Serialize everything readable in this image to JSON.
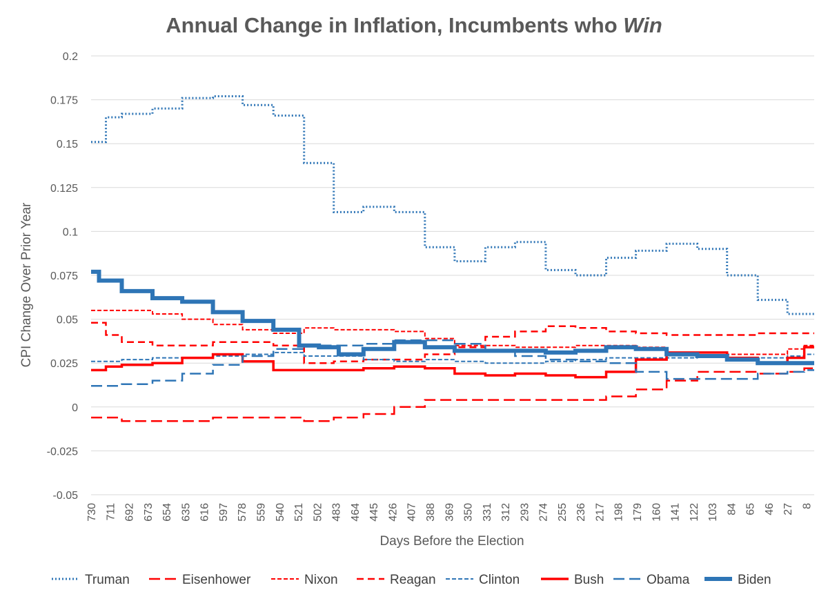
{
  "chart_data": {
    "type": "line",
    "title": "Annual Change in Inflation, Incumbents who ",
    "title_emphasis": "Win",
    "xlabel": "Days Before the Election",
    "ylabel": "CPI Change Over Prior Year",
    "xlim": [
      730,
      0
    ],
    "ylim": [
      -0.05,
      0.2
    ],
    "yticks": [
      "-0.05",
      "-0.025",
      "0",
      "0.025",
      "0.05",
      "0.075",
      "0.1",
      "0.125",
      "0.15",
      "0.175",
      "0.2"
    ],
    "xticks": [
      "730",
      "711",
      "692",
      "673",
      "654",
      "635",
      "616",
      "597",
      "578",
      "559",
      "540",
      "521",
      "502",
      "483",
      "464",
      "445",
      "426",
      "407",
      "388",
      "369",
      "350",
      "331",
      "312",
      "293",
      "274",
      "255",
      "236",
      "217",
      "198",
      "179",
      "160",
      "141",
      "122",
      "103",
      "84",
      "65",
      "46",
      "27",
      "8"
    ],
    "grid": true,
    "legend_position": "bottom",
    "series": [
      {
        "name": "Truman",
        "color": "#2E75B6",
        "style": "dotted",
        "steps": [
          [
            730,
            0.151
          ],
          [
            715,
            0.165
          ],
          [
            699,
            0.167
          ],
          [
            668,
            0.17
          ],
          [
            638,
            0.176
          ],
          [
            607,
            0.177
          ],
          [
            577,
            0.172
          ],
          [
            546,
            0.166
          ],
          [
            515,
            0.139
          ],
          [
            485,
            0.111
          ],
          [
            455,
            0.114
          ],
          [
            424,
            0.111
          ],
          [
            393,
            0.091
          ],
          [
            363,
            0.083
          ],
          [
            332,
            0.091
          ],
          [
            302,
            0.094
          ],
          [
            271,
            0.078
          ],
          [
            241,
            0.075
          ],
          [
            210,
            0.085
          ],
          [
            180,
            0.089
          ],
          [
            149,
            0.093
          ],
          [
            118,
            0.09
          ],
          [
            88,
            0.075
          ],
          [
            57,
            0.061
          ],
          [
            27,
            0.053
          ],
          [
            0,
            0.053
          ]
        ]
      },
      {
        "name": "Eisenhower",
        "color": "#FF0000",
        "style": "longdash",
        "steps": [
          [
            730,
            -0.006
          ],
          [
            699,
            -0.008
          ],
          [
            607,
            -0.006
          ],
          [
            515,
            -0.008
          ],
          [
            485,
            -0.006
          ],
          [
            455,
            -0.004
          ],
          [
            424,
            0.0
          ],
          [
            393,
            0.004
          ],
          [
            241,
            0.004
          ],
          [
            210,
            0.006
          ],
          [
            180,
            0.01
          ],
          [
            149,
            0.015
          ],
          [
            118,
            0.02
          ],
          [
            88,
            0.02
          ],
          [
            57,
            0.019
          ],
          [
            27,
            0.02
          ],
          [
            10,
            0.022
          ],
          [
            0,
            0.022
          ]
        ]
      },
      {
        "name": "Nixon",
        "color": "#FF0000",
        "style": "shortdash",
        "steps": [
          [
            730,
            0.055
          ],
          [
            668,
            0.053
          ],
          [
            638,
            0.05
          ],
          [
            607,
            0.047
          ],
          [
            577,
            0.044
          ],
          [
            546,
            0.042
          ],
          [
            515,
            0.045
          ],
          [
            485,
            0.044
          ],
          [
            424,
            0.043
          ],
          [
            393,
            0.039
          ],
          [
            363,
            0.035
          ],
          [
            302,
            0.034
          ],
          [
            241,
            0.035
          ],
          [
            180,
            0.034
          ],
          [
            149,
            0.03
          ],
          [
            118,
            0.029
          ],
          [
            88,
            0.03
          ],
          [
            57,
            0.03
          ],
          [
            27,
            0.033
          ],
          [
            10,
            0.035
          ],
          [
            0,
            0.035
          ]
        ]
      },
      {
        "name": "Reagan",
        "color": "#FF0000",
        "style": "dash",
        "steps": [
          [
            730,
            0.048
          ],
          [
            715,
            0.041
          ],
          [
            699,
            0.037
          ],
          [
            668,
            0.035
          ],
          [
            607,
            0.037
          ],
          [
            546,
            0.035
          ],
          [
            515,
            0.025
          ],
          [
            485,
            0.026
          ],
          [
            455,
            0.027
          ],
          [
            393,
            0.03
          ],
          [
            363,
            0.034
          ],
          [
            332,
            0.04
          ],
          [
            302,
            0.043
          ],
          [
            271,
            0.046
          ],
          [
            241,
            0.045
          ],
          [
            210,
            0.043
          ],
          [
            180,
            0.042
          ],
          [
            149,
            0.041
          ],
          [
            57,
            0.042
          ],
          [
            27,
            0.042
          ],
          [
            0,
            0.042
          ]
        ]
      },
      {
        "name": "Clinton",
        "color": "#2E75B6",
        "style": "shortdash",
        "steps": [
          [
            730,
            0.026
          ],
          [
            699,
            0.027
          ],
          [
            668,
            0.028
          ],
          [
            607,
            0.029
          ],
          [
            577,
            0.03
          ],
          [
            546,
            0.031
          ],
          [
            515,
            0.029
          ],
          [
            485,
            0.029
          ],
          [
            455,
            0.027
          ],
          [
            424,
            0.026
          ],
          [
            393,
            0.027
          ],
          [
            363,
            0.026
          ],
          [
            332,
            0.025
          ],
          [
            302,
            0.025
          ],
          [
            271,
            0.026
          ],
          [
            241,
            0.027
          ],
          [
            210,
            0.028
          ],
          [
            180,
            0.028
          ],
          [
            149,
            0.028
          ],
          [
            118,
            0.029
          ],
          [
            88,
            0.028
          ],
          [
            57,
            0.028
          ],
          [
            27,
            0.029
          ],
          [
            10,
            0.03
          ],
          [
            0,
            0.03
          ]
        ]
      },
      {
        "name": "Bush",
        "color": "#FF0000",
        "style": "solid",
        "steps": [
          [
            730,
            0.021
          ],
          [
            715,
            0.023
          ],
          [
            699,
            0.024
          ],
          [
            668,
            0.025
          ],
          [
            638,
            0.028
          ],
          [
            607,
            0.03
          ],
          [
            577,
            0.026
          ],
          [
            546,
            0.021
          ],
          [
            515,
            0.021
          ],
          [
            485,
            0.021
          ],
          [
            455,
            0.022
          ],
          [
            424,
            0.023
          ],
          [
            393,
            0.022
          ],
          [
            363,
            0.019
          ],
          [
            332,
            0.018
          ],
          [
            302,
            0.019
          ],
          [
            271,
            0.018
          ],
          [
            241,
            0.017
          ],
          [
            210,
            0.02
          ],
          [
            180,
            0.027
          ],
          [
            149,
            0.031
          ],
          [
            118,
            0.031
          ],
          [
            88,
            0.028
          ],
          [
            57,
            0.025
          ],
          [
            27,
            0.028
          ],
          [
            10,
            0.034
          ],
          [
            0,
            0.034
          ]
        ]
      },
      {
        "name": "Obama",
        "color": "#2E75B6",
        "style": "longdash",
        "steps": [
          [
            730,
            0.012
          ],
          [
            699,
            0.013
          ],
          [
            668,
            0.015
          ],
          [
            638,
            0.019
          ],
          [
            607,
            0.024
          ],
          [
            577,
            0.029
          ],
          [
            546,
            0.033
          ],
          [
            515,
            0.035
          ],
          [
            485,
            0.035
          ],
          [
            455,
            0.036
          ],
          [
            424,
            0.038
          ],
          [
            393,
            0.038
          ],
          [
            363,
            0.036
          ],
          [
            332,
            0.032
          ],
          [
            302,
            0.029
          ],
          [
            271,
            0.027
          ],
          [
            241,
            0.026
          ],
          [
            210,
            0.025
          ],
          [
            180,
            0.02
          ],
          [
            149,
            0.016
          ],
          [
            118,
            0.016
          ],
          [
            88,
            0.016
          ],
          [
            57,
            0.019
          ],
          [
            27,
            0.02
          ],
          [
            10,
            0.021
          ],
          [
            0,
            0.021
          ]
        ]
      },
      {
        "name": "Biden",
        "color": "#2E75B6",
        "style": "thick",
        "steps": [
          [
            730,
            0.077
          ],
          [
            722,
            0.072
          ],
          [
            699,
            0.066
          ],
          [
            668,
            0.062
          ],
          [
            638,
            0.06
          ],
          [
            607,
            0.054
          ],
          [
            577,
            0.049
          ],
          [
            546,
            0.044
          ],
          [
            520,
            0.035
          ],
          [
            500,
            0.034
          ],
          [
            480,
            0.03
          ],
          [
            455,
            0.033
          ],
          [
            424,
            0.037
          ],
          [
            393,
            0.034
          ],
          [
            363,
            0.032
          ],
          [
            332,
            0.032
          ],
          [
            302,
            0.032
          ],
          [
            271,
            0.031
          ],
          [
            241,
            0.032
          ],
          [
            210,
            0.034
          ],
          [
            180,
            0.033
          ],
          [
            149,
            0.03
          ],
          [
            118,
            0.029
          ],
          [
            88,
            0.027
          ],
          [
            57,
            0.025
          ],
          [
            27,
            0.025
          ],
          [
            10,
            0.025
          ],
          [
            0,
            0.025
          ]
        ]
      }
    ]
  }
}
